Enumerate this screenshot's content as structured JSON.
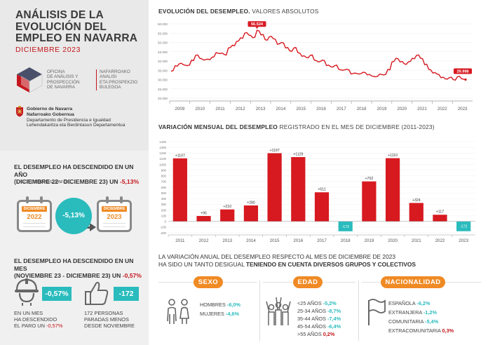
{
  "header": {
    "title_lines": [
      "ANÁLISIS DE LA",
      "EVOLUCIÓN DEL",
      "EMPLEO EN NAVARRA"
    ],
    "subtitle": "DICIEMBRE 2023"
  },
  "office": {
    "name_lines": [
      "OFICINA",
      "DE ANÁLISIS Y",
      "PROSPECCIÓN",
      "DE NAVARRA"
    ],
    "name_eu_lines": [
      "NAFARROAKO",
      "ANALISI",
      "ETA PROSPEKZIO",
      "BULEGOA"
    ]
  },
  "government": {
    "line1": "Gobierno de Navarra",
    "line2": "Nafarroako Gobernua",
    "line3": "Departamento de Presidencia e Igualdad",
    "line4": "Lehendakaritza eta Berdintasun Departamentua"
  },
  "annual": {
    "text_a": "EL DESEMPLEO HA DESCENDIDO EN UN AÑO",
    "text_b": "(DICIEMBRE 22 - DICIEMBRE 23) UN ",
    "pct": "-5,13%",
    "note": "(1.622 personas menos).",
    "cal_label": "DICIEMBRE",
    "year_from": "2022",
    "year_to": "2023",
    "circle_pct": "-5,13%"
  },
  "monthly": {
    "text_a": "EL DESEMPLEO HA DESCENDIDO EN UN MES",
    "text_b": "(NOVIEMBRE 23 - DICIEMBRE 23) UN ",
    "pct": "-0,57%",
    "badge_pct": "-0,57%",
    "desc_lines": [
      "EN UN MES",
      "HA DESCENDIDO",
      "EL PARO UN "
    ],
    "desc_pct": "-0,57%",
    "badge_people": "-172",
    "people_lines": [
      "172 PERSONAS",
      "PARADAS MENOS",
      "DESDE NOVIEMBRE"
    ]
  },
  "line_chart_title_bold": "EVOLUCIÓN DEL DESEMPLEO.",
  "line_chart_title_rest": " VALORES ABSOLUTOS",
  "bar_chart_title_bold": "VARIACIÓN MENSUAL DEL DESEMPLEO",
  "bar_chart_title_rest": " REGISTRADO EN EL MES DE DICIEMBRE (2011-2023)",
  "chart_data": [
    {
      "type": "line",
      "title": "EVOLUCIÓN DEL DESEMPLEO. VALORES ABSOLUTOS",
      "ylim": [
        20000,
        60000
      ],
      "yticks": [
        "60.000",
        "55.000",
        "50.000",
        "45.000",
        "40.000",
        "35.000",
        "30.000",
        "25.000",
        "20.000"
      ],
      "xticks": [
        "2009",
        "2010",
        "2011",
        "2012",
        "2013",
        "2014",
        "2015",
        "2016",
        "2017",
        "2018",
        "2019",
        "2020",
        "2021",
        "2022",
        "2023"
      ],
      "peak_label": "56.524",
      "last_label": "29.998",
      "series": [
        {
          "values": [
            34500,
            37500,
            38500,
            38000,
            37500,
            40500,
            43000,
            41500,
            40500,
            41000,
            42000,
            44500,
            44000,
            43500,
            47000,
            48500,
            50500,
            52500,
            55000,
            54000,
            52500,
            56524,
            54000,
            51500,
            53000,
            52000,
            49000,
            50000,
            47000,
            45500,
            47000,
            44500,
            42500,
            42000,
            43000,
            40500,
            39500,
            40500,
            37500,
            37000,
            37500,
            35500,
            35000,
            35500,
            33000,
            33500,
            33000,
            34000,
            32500,
            32000,
            31500,
            33000,
            32500,
            35500,
            39500,
            41500,
            39500,
            38500,
            39500,
            41500,
            43000,
            41500,
            38000,
            35500,
            33500,
            33000,
            31000,
            30500,
            31000,
            30000,
            31500,
            30500,
            29998
          ]
        }
      ]
    },
    {
      "type": "bar",
      "title": "VARIACIÓN MENSUAL DEL DESEMPLEO REGISTRADO EN EL MES DE DICIEMBRE (2011-2023)",
      "ylim": [
        -200,
        1400
      ],
      "yticks": [
        "1400",
        "1300",
        "1200",
        "1100",
        "1000",
        "900",
        "800",
        "700",
        "600",
        "500",
        "400",
        "300",
        "200",
        "100",
        "0",
        "-100",
        "-200"
      ],
      "categories": [
        "2011",
        "2012",
        "2013",
        "2014",
        "2015",
        "2016",
        "2017",
        "2018",
        "2019",
        "2020",
        "2021",
        "2022",
        "2023"
      ],
      "values": [
        1107,
        95,
        210,
        280,
        1197,
        1129,
        511,
        -173,
        702,
        1110,
        324,
        117,
        -172
      ],
      "labels": [
        "+1107",
        "+95",
        "+210",
        "+280",
        "+1197",
        "+1129",
        "+511",
        "-173",
        "+702",
        "+1110",
        "+324",
        "+117",
        "-172"
      ],
      "colors": {
        "positive": "#d71920",
        "negative": "#2abbbd"
      }
    }
  ],
  "variation": {
    "line1": "LA VARIACIÓN ANUAL DEL DESEMPLEO RESPECTO AL MES DE DICIEMBRE DE 2023",
    "line2_plain": "HA SIDO UN TANTO DESIGUAL ",
    "line2_bold": "TENIENDO EN CUENTA DIVERSOS GRUPOS Y COLECTIVOS"
  },
  "groups": {
    "sexo": {
      "label": "SEXO",
      "rows": [
        {
          "name": "HOMBRES ",
          "value": "-6,0%",
          "sign": "neg"
        },
        {
          "name": "MUJERES ",
          "value": "-4,6%",
          "sign": "neg"
        }
      ]
    },
    "edad": {
      "label": "EDAD",
      "rows": [
        {
          "name": "<25 AÑOS ",
          "value": "-5,2%",
          "sign": "neg"
        },
        {
          "name": "25-34 AÑOS ",
          "value": "-8,7%",
          "sign": "neg"
        },
        {
          "name": "35-44 AÑOS ",
          "value": "-7,4%",
          "sign": "neg"
        },
        {
          "name": "45-54 AÑOS ",
          "value": "-6,4%",
          "sign": "neg"
        },
        {
          "name": ">55 AÑOS ",
          "value": "0,2%",
          "sign": "pos"
        }
      ]
    },
    "nacionalidad": {
      "label": "NACIONALIDAD",
      "rows": [
        {
          "name": "ESPAÑOLA ",
          "value": "-6,2%",
          "sign": "neg"
        },
        {
          "name": "EXTRANJERA ",
          "value": "-1,2%",
          "sign": "neg"
        },
        {
          "name": "COMUNITARIA ",
          "value": "-5,4%",
          "sign": "neg"
        },
        {
          "name": "EXTRACOMUNITARIA ",
          "value": "0,3%",
          "sign": "pos"
        }
      ]
    }
  },
  "colors": {
    "brand_red": "#c4161c",
    "teal": "#2abbbd",
    "orange": "#f08a24"
  },
  "icons": [
    "oficina-logo-icon",
    "navarra-shield-icon",
    "calendar-icon",
    "arrow-right-icon",
    "worker-helmet-icon",
    "thumbs-up-icon",
    "people-couple-icon",
    "raised-hands-icon",
    "flag-icon"
  ]
}
